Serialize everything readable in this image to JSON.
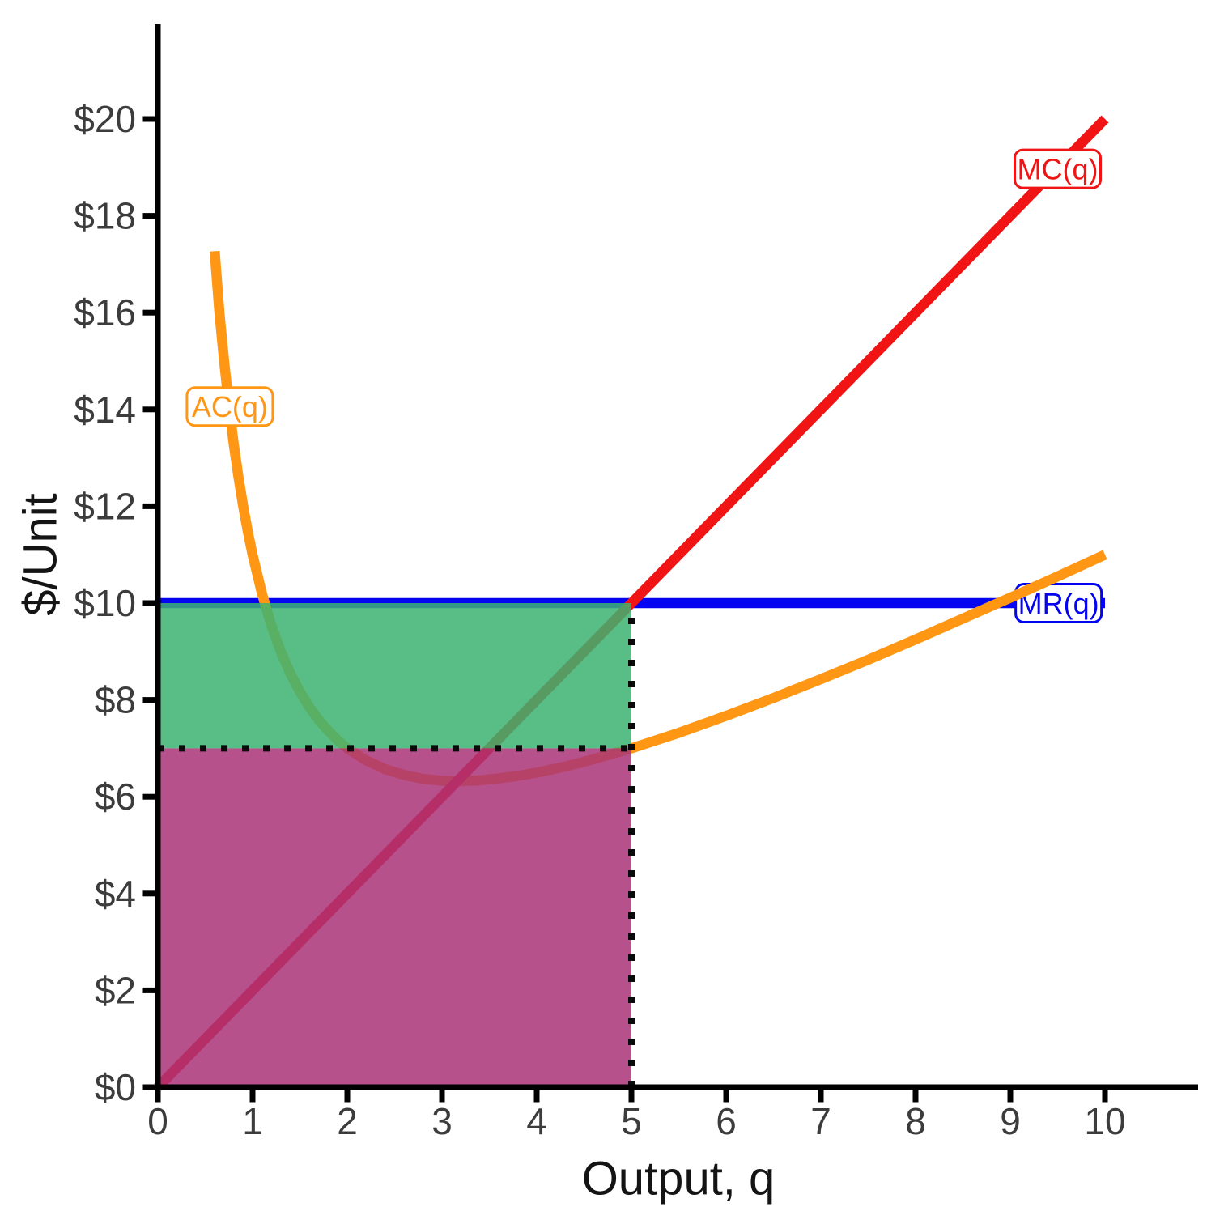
{
  "chart_data": {
    "type": "line",
    "title": "",
    "xlabel": "Output, q",
    "ylabel": "$/Unit",
    "xlim": [
      0,
      10
    ],
    "ylim": [
      0,
      20
    ],
    "grid": false,
    "legend_position": "inline-curve-labels",
    "x_ticks": [
      0,
      1,
      2,
      3,
      4,
      5,
      6,
      7,
      8,
      9,
      10
    ],
    "x_tick_labels": [
      "0",
      "1",
      "2",
      "3",
      "4",
      "5",
      "6",
      "7",
      "8",
      "9",
      "10"
    ],
    "y_ticks": [
      0,
      2,
      4,
      6,
      8,
      10,
      12,
      14,
      16,
      18,
      20
    ],
    "y_tick_labels": [
      "$0",
      "$2",
      "$4",
      "$6",
      "$8",
      "$10",
      "$12",
      "$14",
      "$16",
      "$18",
      "$20"
    ],
    "series": [
      {
        "name": "MR(q)",
        "role": "marginal-revenue",
        "color": "#0404f0",
        "points": [
          [
            0,
            10
          ],
          [
            10,
            10
          ]
        ]
      },
      {
        "name": "AC(q)",
        "role": "average-cost",
        "color": "#ff9714",
        "points": [
          [
            0.6,
            17.27
          ],
          [
            0.65,
            15.99
          ],
          [
            0.7,
            14.99
          ],
          [
            0.75,
            14.08
          ],
          [
            0.8,
            13.3
          ],
          [
            0.85,
            12.62
          ],
          [
            0.9,
            12.01
          ],
          [
            0.95,
            11.48
          ],
          [
            1.0,
            11.0
          ],
          [
            1.1,
            10.19
          ],
          [
            1.2,
            9.53
          ],
          [
            1.3,
            8.99
          ],
          [
            1.4,
            8.54
          ],
          [
            1.5,
            8.17
          ],
          [
            1.6,
            7.85
          ],
          [
            1.7,
            7.58
          ],
          [
            1.8,
            7.36
          ],
          [
            1.9,
            7.16
          ],
          [
            2.0,
            7.0
          ],
          [
            2.2,
            6.75
          ],
          [
            2.4,
            6.57
          ],
          [
            2.6,
            6.45
          ],
          [
            2.8,
            6.37
          ],
          [
            3.0,
            6.33
          ],
          [
            3.2,
            6.32
          ],
          [
            3.4,
            6.34
          ],
          [
            3.6,
            6.38
          ],
          [
            3.8,
            6.43
          ],
          [
            4.0,
            6.5
          ],
          [
            4.25,
            6.6
          ],
          [
            4.5,
            6.72
          ],
          [
            4.75,
            6.86
          ],
          [
            5.0,
            7.0
          ],
          [
            5.5,
            7.32
          ],
          [
            6.0,
            7.67
          ],
          [
            6.5,
            8.04
          ],
          [
            7.0,
            8.43
          ],
          [
            7.5,
            8.83
          ],
          [
            8.0,
            9.25
          ],
          [
            8.5,
            9.68
          ],
          [
            9.0,
            10.11
          ],
          [
            9.5,
            10.55
          ],
          [
            10.0,
            11.0
          ]
        ]
      },
      {
        "name": "MC(q)",
        "role": "marginal-cost",
        "color": "#f01414",
        "points": [
          [
            0,
            0
          ],
          [
            10,
            20
          ]
        ]
      }
    ],
    "regions": [
      {
        "name": "profit-region",
        "color": "#3cb371",
        "opacity": 0.85,
        "x": [
          0,
          5
        ],
        "y": [
          7,
          10
        ]
      },
      {
        "name": "total-cost-region",
        "color": "#aa3377",
        "opacity": 0.85,
        "x": [
          0,
          5
        ],
        "y": [
          0,
          7
        ]
      }
    ],
    "guides": [
      {
        "name": "average-cost-guide",
        "orientation": "h",
        "at": 7,
        "span": [
          0,
          5
        ]
      },
      {
        "name": "optimal-output-guide",
        "orientation": "v",
        "at": 5,
        "span": [
          0,
          10
        ]
      }
    ],
    "curve_labels": [
      {
        "text": "AC(q)",
        "color": "#ff9714",
        "x": 0.76,
        "y": 14.06,
        "after_series": "AC(q)"
      },
      {
        "text": "MC(q)",
        "color": "#f01414",
        "x": 9.5,
        "y": 18.97,
        "after_series": "MC(q)"
      },
      {
        "text": "MR(q)",
        "color": "#0404f0",
        "x": 9.51,
        "y": 10.0,
        "after_series": "MR(q)"
      }
    ],
    "key_points": {
      "q_star": 5,
      "price": 10,
      "ac_at_q_star": 7
    },
    "colors": {
      "axis": "#000000",
      "tick_label": "#3c3c3c",
      "axis_title": "#141414",
      "guide": "#0a0a0a",
      "background": "#ffffff"
    }
  }
}
